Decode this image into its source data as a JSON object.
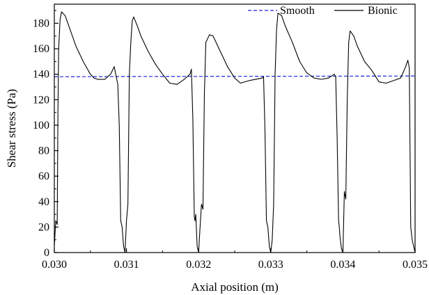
{
  "chart_data": {
    "type": "line",
    "title": "",
    "xlabel": "Axial position (m)",
    "ylabel": "Shear stress (Pa)",
    "xlim": [
      0.03,
      0.035
    ],
    "ylim": [
      0,
      195
    ],
    "x_ticks": [
      0.03,
      0.031,
      0.032,
      0.033,
      0.034,
      0.035
    ],
    "x_tick_labels": [
      "0.030",
      "0.031",
      "0.032",
      "0.033",
      "0.034",
      "0.035"
    ],
    "y_ticks": [
      0,
      20,
      40,
      60,
      80,
      100,
      120,
      140,
      160,
      180
    ],
    "y_tick_labels": [
      "0",
      "20",
      "40",
      "60",
      "80",
      "100",
      "120",
      "140",
      "160",
      "180"
    ],
    "grid": false,
    "legend_position": "top-right",
    "series": [
      {
        "name": "Smooth",
        "color": "#2222dd",
        "style": "dashed",
        "x": [
          0.03,
          0.031,
          0.032,
          0.033,
          0.034,
          0.035
        ],
        "y": [
          138.0,
          138.2,
          138.3,
          138.4,
          138.5,
          138.6
        ]
      },
      {
        "name": "Bionic",
        "color": "#000000",
        "style": "solid",
        "x": [
          0.03,
          0.03002,
          0.03004,
          0.03005,
          0.03006,
          0.03008,
          0.0301,
          0.03015,
          0.0302,
          0.0303,
          0.0304,
          0.0305,
          0.03055,
          0.0306,
          0.0307,
          0.03078,
          0.03083,
          0.03088,
          0.0309,
          0.03092,
          0.03094,
          0.03096,
          0.03098,
          0.031,
          0.03102,
          0.03104,
          0.03106,
          0.03108,
          0.0311,
          0.03115,
          0.0312,
          0.0313,
          0.0314,
          0.0315,
          0.0316,
          0.0317,
          0.0318,
          0.03188,
          0.0319,
          0.03192,
          0.03194,
          0.03195,
          0.03196,
          0.03198,
          0.032,
          0.03202,
          0.03204,
          0.03206,
          0.03208,
          0.0321,
          0.03215,
          0.0322,
          0.0323,
          0.0324,
          0.0325,
          0.03258,
          0.0327,
          0.03288,
          0.0329,
          0.03292,
          0.03294,
          0.03296,
          0.03298,
          0.033,
          0.03302,
          0.03304,
          0.03306,
          0.03308,
          0.0331,
          0.03315,
          0.0332,
          0.0333,
          0.0334,
          0.0335,
          0.0336,
          0.0337,
          0.0338,
          0.03388,
          0.0339,
          0.03392,
          0.03394,
          0.03395,
          0.03396,
          0.03398,
          0.034,
          0.03402,
          0.03404,
          0.03406,
          0.03408,
          0.0341,
          0.03415,
          0.0342,
          0.0343,
          0.0344,
          0.0345,
          0.0346,
          0.0347,
          0.0348,
          0.03487,
          0.0349,
          0.03492,
          0.03494,
          0.03496,
          0.035
        ],
        "y": [
          5,
          25,
          22,
          110,
          160,
          183,
          189,
          186,
          178,
          162,
          150,
          140,
          137,
          136,
          136,
          140,
          146,
          132,
          100,
          25,
          20,
          5,
          0,
          25,
          38,
          140,
          165,
          182,
          185,
          178,
          170,
          158,
          148,
          140,
          133,
          132,
          136,
          140,
          144,
          105,
          28,
          25,
          30,
          5,
          0,
          20,
          38,
          34,
          125,
          165,
          171,
          170,
          158,
          146,
          137,
          133,
          135,
          137,
          138,
          95,
          25,
          20,
          5,
          0,
          10,
          38,
          140,
          175,
          188,
          186,
          178,
          165,
          150,
          141,
          137,
          136,
          137,
          140,
          138,
          90,
          25,
          20,
          12,
          3,
          0,
          48,
          42,
          120,
          165,
          174,
          170,
          162,
          150,
          143,
          134,
          133,
          135,
          137,
          146,
          151,
          145,
          20,
          10,
          0
        ]
      }
    ]
  }
}
